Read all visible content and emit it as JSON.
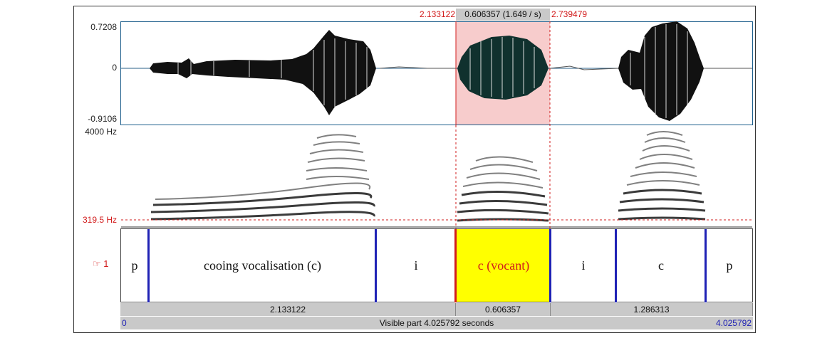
{
  "selection": {
    "start": "2.133122",
    "duration_label": "0.606357 (1.649 / s)",
    "end": "2.739479"
  },
  "waveform": {
    "y_max": "0.7208",
    "y_zero": "0",
    "y_min": "-0.9106"
  },
  "spectrogram": {
    "freq_top": "4000 Hz",
    "pitch_cursor": "319.5 Hz"
  },
  "tier": {
    "number": "1",
    "segments": [
      {
        "label": "p",
        "selected": false
      },
      {
        "label": "cooing vocalisation (c)",
        "selected": false
      },
      {
        "label": "i",
        "selected": false
      },
      {
        "label": "c (vocant)",
        "selected": true
      },
      {
        "label": "i",
        "selected": false
      },
      {
        "label": "c",
        "selected": false
      },
      {
        "label": "p",
        "selected": false
      }
    ]
  },
  "durations": {
    "before": "2.133122",
    "selection": "0.606357",
    "after": "1.286313"
  },
  "visible": {
    "start": "0",
    "text": "Visible part 4.025792 seconds",
    "end": "4.025792"
  },
  "colors": {
    "selection_wave": "#f7cccc",
    "selection_tier": "#ffff00",
    "cursor": "#d21c1c",
    "boundary": "#1f22b5"
  }
}
